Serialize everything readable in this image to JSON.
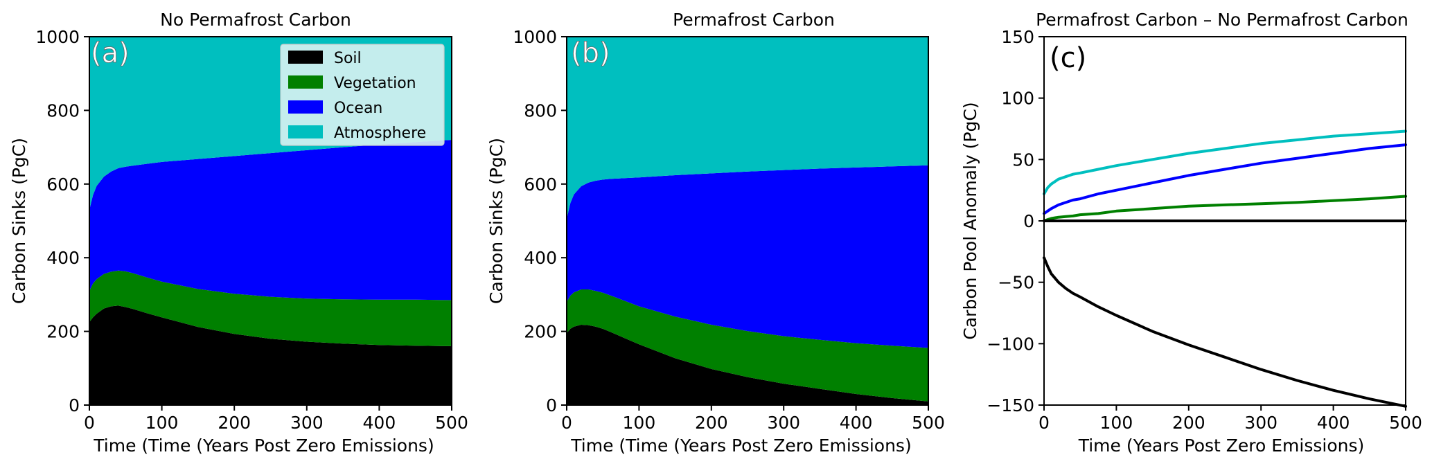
{
  "chart_data": [
    {
      "type": "area",
      "panel_label": "(a)",
      "title": "No Permafrost Carbon",
      "xlabel": "Time (Time (Years Post Zero Emissions)",
      "ylabel": "Carbon Sinks (PgC)",
      "xlim": [
        0,
        500
      ],
      "ylim": [
        0,
        1000
      ],
      "x_ticks": [
        0,
        100,
        200,
        300,
        400,
        500
      ],
      "y_ticks": [
        0,
        200,
        400,
        600,
        800,
        1000
      ],
      "legend_position": "top-right",
      "stacked": true,
      "x": [
        0,
        5,
        10,
        20,
        30,
        40,
        50,
        60,
        80,
        100,
        150,
        200,
        250,
        300,
        350,
        400,
        450,
        500
      ],
      "series": [
        {
          "name": "Soil",
          "color": "#000000",
          "values": [
            225,
            238,
            248,
            262,
            268,
            270,
            266,
            261,
            249,
            238,
            212,
            193,
            180,
            172,
            167,
            163,
            161,
            160
          ]
        },
        {
          "name": "Vegetation",
          "color": "#008000",
          "values": [
            310,
            330,
            342,
            356,
            362,
            365,
            363,
            358,
            346,
            335,
            315,
            302,
            294,
            289,
            287,
            286,
            286,
            285
          ]
        },
        {
          "name": "Ocean",
          "color": "#0000ff",
          "values": [
            530,
            570,
            595,
            620,
            634,
            643,
            647,
            650,
            655,
            660,
            668,
            676,
            684,
            692,
            700,
            707,
            714,
            720
          ]
        },
        {
          "name": "Atmosphere",
          "color": "#00bfbf",
          "values": [
            1000,
            1000,
            1000,
            1000,
            1000,
            1000,
            1000,
            1000,
            1000,
            1000,
            1000,
            1000,
            1000,
            1000,
            1000,
            1000,
            1000,
            1000
          ]
        }
      ]
    },
    {
      "type": "area",
      "panel_label": "(b)",
      "title": "Permafrost Carbon",
      "xlabel": "Time (Time (Years Post Zero Emissions)",
      "ylabel": "Carbon Sinks (PgC)",
      "xlim": [
        0,
        500
      ],
      "ylim": [
        0,
        1000
      ],
      "x_ticks": [
        0,
        100,
        200,
        300,
        400,
        500
      ],
      "y_ticks": [
        0,
        200,
        400,
        600,
        800,
        1000
      ],
      "stacked": true,
      "x": [
        0,
        5,
        10,
        20,
        30,
        40,
        50,
        60,
        80,
        100,
        150,
        200,
        250,
        300,
        350,
        400,
        450,
        500
      ],
      "series": [
        {
          "name": "Soil",
          "color": "#000000",
          "values": [
            195,
            207,
            213,
            218,
            217,
            213,
            207,
            199,
            182,
            165,
            127,
            98,
            76,
            58,
            44,
            30,
            19,
            10
          ]
        },
        {
          "name": "Vegetation",
          "color": "#008000",
          "values": [
            280,
            297,
            306,
            314,
            314,
            310,
            305,
            298,
            283,
            268,
            240,
            218,
            201,
            187,
            177,
            168,
            161,
            155
          ]
        },
        {
          "name": "Ocean",
          "color": "#0000ff",
          "values": [
            505,
            548,
            572,
            594,
            604,
            609,
            612,
            614,
            616,
            618,
            624,
            629,
            634,
            638,
            642,
            645,
            648,
            651
          ]
        },
        {
          "name": "Atmosphere",
          "color": "#00bfbf",
          "values": [
            1000,
            1000,
            1000,
            1000,
            1000,
            1000,
            1000,
            1000,
            1000,
            1000,
            1000,
            1000,
            1000,
            1000,
            1000,
            1000,
            1000,
            1000
          ]
        }
      ]
    },
    {
      "type": "line",
      "panel_label": "(c)",
      "title": "Permafrost Carbon – No Permafrost Carbon",
      "xlabel": "Time (Years Post Zero Emissions)",
      "ylabel": "Carbon Pool Anomaly (PgC)",
      "xlim": [
        0,
        500
      ],
      "ylim": [
        -150,
        150
      ],
      "x_ticks": [
        0,
        100,
        200,
        300,
        400,
        500
      ],
      "y_ticks": [
        -150,
        -100,
        -50,
        0,
        50,
        100,
        150
      ],
      "x": [
        0,
        5,
        10,
        20,
        30,
        40,
        50,
        75,
        100,
        150,
        200,
        250,
        300,
        350,
        400,
        450,
        500
      ],
      "series": [
        {
          "color": "#00bfbf",
          "values": [
            22,
            27,
            30,
            34,
            36,
            38,
            39,
            42,
            45,
            50,
            55,
            59,
            63,
            66,
            69,
            71,
            73
          ]
        },
        {
          "color": "#0000ff",
          "values": [
            6,
            8,
            10,
            13,
            15,
            17,
            18,
            22,
            25,
            31,
            37,
            42,
            47,
            51,
            55,
            59,
            62
          ]
        },
        {
          "color": "#008000",
          "values": [
            0,
            1,
            2,
            3,
            3.5,
            4,
            5,
            6,
            8,
            10,
            12,
            13,
            14,
            15,
            16.5,
            18,
            20
          ]
        },
        {
          "color": "#000000",
          "values": [
            0,
            0,
            0,
            0,
            0,
            0,
            0,
            0,
            0,
            0,
            0,
            0,
            0,
            0,
            0,
            0,
            0
          ]
        },
        {
          "color": "#000000",
          "values": [
            -30,
            -37,
            -43,
            -50,
            -55,
            -59,
            -62,
            -70,
            -77,
            -90,
            -101,
            -111,
            -121,
            -130,
            -138,
            -145,
            -151
          ]
        }
      ]
    }
  ]
}
